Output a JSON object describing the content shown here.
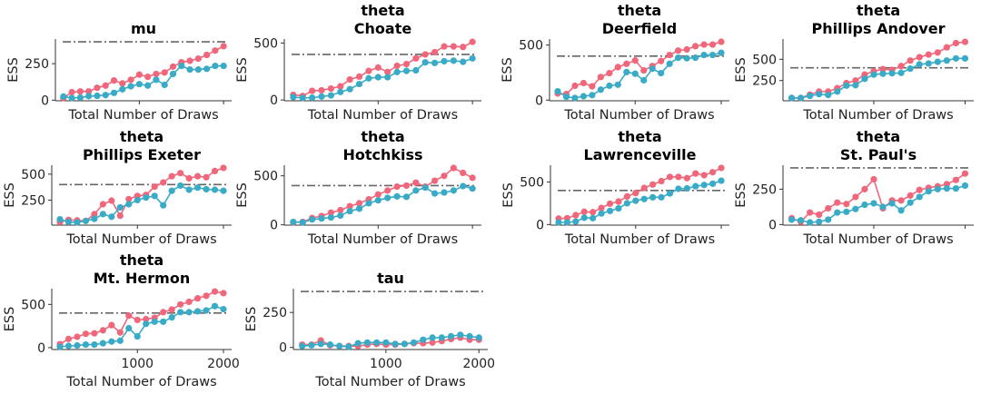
{
  "chart_data": [
    {
      "type": "line",
      "title": [
        "mu"
      ],
      "xlabel": "Total Number of Draws",
      "ylabel": "ESS",
      "xlim": [
        5,
        2095
      ],
      "ylim": [
        -4,
        419
      ],
      "yticks": [
        0,
        250
      ],
      "xticks": [
        1000,
        2000
      ],
      "show_xticklabels": false,
      "reference_line": 400,
      "series": [
        {
          "values": [
            15,
            55,
            60,
            60,
            85,
            100,
            135,
            115,
            140,
            175,
            160,
            180,
            190,
            230,
            260,
            270,
            285,
            310,
            340,
            370
          ]
        },
        {
          "values": [
            25,
            15,
            18,
            28,
            30,
            35,
            50,
            75,
            95,
            110,
            100,
            140,
            105,
            180,
            235,
            210,
            210,
            215,
            235,
            235
          ]
        }
      ]
    },
    {
      "type": "line",
      "title": [
        "theta",
        "Choate"
      ],
      "xlabel": "Total Number of Draws",
      "ylabel": "ESS",
      "xlim": [
        5,
        2095
      ],
      "ylim": [
        -7,
        535
      ],
      "yticks": [
        0,
        500
      ],
      "xticks": [
        1000,
        2000
      ],
      "show_xticklabels": false,
      "reference_line": 400,
      "series": [
        {
          "values": [
            45,
            35,
            80,
            85,
            100,
            120,
            180,
            205,
            255,
            285,
            245,
            300,
            315,
            365,
            400,
            420,
            470,
            470,
            465,
            510
          ]
        },
        {
          "values": [
            25,
            18,
            20,
            30,
            40,
            70,
            95,
            140,
            190,
            200,
            200,
            245,
            255,
            260,
            330,
            325,
            340,
            345,
            335,
            365
          ]
        }
      ]
    },
    {
      "type": "line",
      "title": [
        "theta",
        "Deerfield"
      ],
      "xlabel": "Total Number of Draws",
      "ylabel": "ESS",
      "xlim": [
        5,
        2095
      ],
      "ylim": [
        -6,
        555
      ],
      "yticks": [
        0,
        500
      ],
      "xticks": [
        1000,
        2000
      ],
      "show_xticklabels": false,
      "reference_line": 400,
      "series": [
        {
          "values": [
            60,
            55,
            130,
            155,
            125,
            210,
            245,
            300,
            330,
            360,
            270,
            310,
            355,
            410,
            450,
            460,
            490,
            505,
            505,
            530
          ]
        },
        {
          "values": [
            80,
            30,
            20,
            35,
            45,
            95,
            130,
            140,
            255,
            240,
            180,
            285,
            245,
            330,
            385,
            380,
            385,
            410,
            410,
            430
          ]
        }
      ]
    },
    {
      "type": "line",
      "title": [
        "theta",
        "Phillips Andover"
      ],
      "xlabel": "Total Number of Draws",
      "ylabel": "ESS",
      "xlim": [
        5,
        2095
      ],
      "ylim": [
        12,
        738
      ],
      "yticks": [
        250,
        500
      ],
      "xticks": [
        1000,
        2000
      ],
      "show_xticklabels": false,
      "reference_line": 400,
      "series": [
        {
          "values": [
            45,
            45,
            85,
            120,
            120,
            160,
            220,
            250,
            320,
            360,
            385,
            375,
            420,
            485,
            525,
            555,
            580,
            640,
            690,
            705
          ]
        },
        {
          "values": [
            45,
            45,
            70,
            90,
            80,
            120,
            190,
            195,
            270,
            320,
            330,
            335,
            340,
            390,
            440,
            450,
            470,
            485,
            510,
            510
          ]
        }
      ]
    },
    {
      "type": "line",
      "title": [
        "theta",
        "Phillips Exeter"
      ],
      "xlabel": "Total Number of Draws",
      "ylabel": "ESS",
      "xlim": [
        5,
        2095
      ],
      "ylim": [
        9,
        586
      ],
      "yticks": [
        250,
        500
      ],
      "xticks": [
        1000,
        2000
      ],
      "show_xticklabels": false,
      "reference_line": 400,
      "series": [
        {
          "values": [
            40,
            60,
            55,
            50,
            115,
            210,
            245,
            100,
            260,
            290,
            300,
            380,
            420,
            480,
            510,
            460,
            480,
            470,
            530,
            560
          ]
        },
        {
          "values": [
            65,
            40,
            35,
            50,
            70,
            115,
            90,
            180,
            210,
            250,
            275,
            290,
            200,
            340,
            390,
            350,
            370,
            355,
            350,
            340
          ]
        }
      ]
    },
    {
      "type": "line",
      "title": [
        "theta",
        "Hotchkiss"
      ],
      "xlabel": "Total Number of Draws",
      "ylabel": "ESS",
      "xlim": [
        5,
        2095
      ],
      "ylim": [
        -3,
        608
      ],
      "yticks": [
        0,
        500
      ],
      "xticks": [
        1000,
        2000
      ],
      "show_xticklabels": false,
      "reference_line": 400,
      "series": [
        {
          "values": [
            25,
            30,
            70,
            90,
            125,
            150,
            190,
            220,
            260,
            310,
            350,
            390,
            400,
            430,
            390,
            450,
            500,
            580,
            530,
            480
          ]
        },
        {
          "values": [
            30,
            25,
            55,
            65,
            75,
            95,
            140,
            165,
            220,
            250,
            275,
            290,
            285,
            350,
            380,
            320,
            330,
            350,
            395,
            370
          ]
        }
      ]
    },
    {
      "type": "line",
      "title": [
        "theta",
        "Lawrenceville"
      ],
      "xlabel": "Total Number of Draws",
      "ylabel": "ESS",
      "xlim": [
        5,
        2095
      ],
      "ylim": [
        -7,
        697
      ],
      "yticks": [
        0,
        500
      ],
      "xticks": [
        1000,
        2000
      ],
      "show_xticklabels": false,
      "reference_line": 400,
      "series": [
        {
          "values": [
            70,
            75,
            110,
            150,
            145,
            195,
            245,
            270,
            330,
            370,
            430,
            470,
            510,
            560,
            560,
            545,
            600,
            580,
            615,
            665
          ]
        },
        {
          "values": [
            25,
            25,
            35,
            80,
            75,
            130,
            160,
            190,
            250,
            280,
            300,
            320,
            320,
            365,
            420,
            425,
            450,
            465,
            480,
            515
          ]
        }
      ]
    },
    {
      "type": "line",
      "title": [
        "theta",
        "St. Paul's"
      ],
      "xlabel": "Total Number of Draws",
      "ylabel": "ESS",
      "xlim": [
        5,
        2095
      ],
      "ylim": [
        -4,
        419
      ],
      "yticks": [
        0,
        250
      ],
      "xticks": [
        1000,
        2000
      ],
      "show_xticklabels": false,
      "reference_line": 400,
      "series": [
        {
          "values": [
            45,
            20,
            85,
            70,
            115,
            155,
            145,
            195,
            250,
            320,
            115,
            170,
            170,
            205,
            245,
            260,
            270,
            285,
            315,
            360
          ]
        },
        {
          "values": [
            35,
            30,
            15,
            20,
            35,
            85,
            90,
            110,
            140,
            150,
            125,
            150,
            100,
            155,
            195,
            235,
            250,
            255,
            255,
            275
          ]
        }
      ]
    },
    {
      "type": "line",
      "title": [
        "theta",
        "Mt. Hermon"
      ],
      "xlabel": "Total Number of Draws",
      "ylabel": "ESS",
      "xlim": [
        5,
        2095
      ],
      "ylim": [
        -22,
        682
      ],
      "yticks": [
        0,
        500
      ],
      "xticks": [
        1000,
        2000
      ],
      "show_xticklabels": true,
      "reference_line": 400,
      "series": [
        {
          "values": [
            40,
            100,
            125,
            160,
            165,
            200,
            260,
            175,
            370,
            320,
            330,
            345,
            410,
            440,
            500,
            530,
            570,
            600,
            650,
            630
          ]
        },
        {
          "values": [
            10,
            20,
            25,
            35,
            35,
            50,
            70,
            80,
            225,
            130,
            275,
            300,
            300,
            350,
            410,
            410,
            420,
            430,
            480,
            445
          ]
        }
      ]
    },
    {
      "type": "line",
      "title": [
        "tau"
      ],
      "xlabel": "Total Number of Draws",
      "ylabel": "ESS",
      "xlim": [
        5,
        2095
      ],
      "ylim": [
        -15,
        420
      ],
      "yticks": [
        0,
        250
      ],
      "xticks": [
        1000,
        2000
      ],
      "show_xticklabels": true,
      "reference_line": 400,
      "series": [
        {
          "values": [
            20,
            20,
            50,
            15,
            10,
            10,
            10,
            20,
            25,
            20,
            20,
            25,
            30,
            30,
            35,
            45,
            60,
            70,
            55,
            55
          ]
        },
        {
          "values": [
            10,
            15,
            25,
            20,
            10,
            5,
            30,
            35,
            35,
            35,
            25,
            25,
            35,
            55,
            70,
            70,
            80,
            90,
            80,
            70
          ]
        }
      ]
    }
  ],
  "x": [
    100,
    200,
    300,
    400,
    500,
    600,
    700,
    800,
    900,
    1000,
    1100,
    1200,
    1300,
    1400,
    1500,
    1600,
    1700,
    1800,
    1900,
    2000
  ],
  "colors": {
    "series": [
      "#f0677c",
      "#3aabc6"
    ],
    "reference_line": "#666666",
    "axis": "#333333"
  }
}
